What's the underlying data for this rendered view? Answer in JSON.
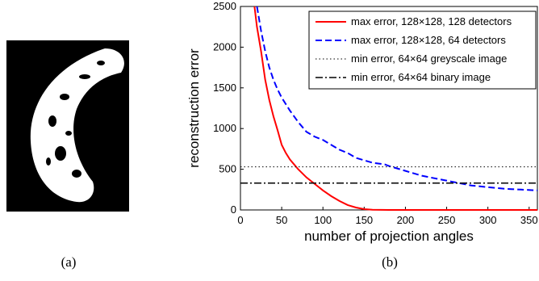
{
  "captions": [
    "(a)",
    "(b)"
  ],
  "chart_data": {
    "type": "line",
    "xlabel": "number of projection angles",
    "ylabel": "reconstruction error",
    "xlim": [
      0,
      360
    ],
    "xticks": [
      0,
      50,
      100,
      150,
      200,
      250,
      300,
      350
    ],
    "ylim": [
      0,
      2500
    ],
    "yticks": [
      0,
      500,
      1000,
      1500,
      2000,
      2500
    ],
    "legend": "upper right",
    "series": [
      {
        "name": "max error, 128×128, 128 detectors",
        "color": "#ff0000",
        "dash": "solid",
        "x": [
          17,
          20,
          25,
          30,
          35,
          40,
          45,
          50,
          55,
          60,
          65,
          70,
          80,
          90,
          100,
          110,
          120,
          130,
          140,
          150,
          160,
          180,
          250,
          360
        ],
        "values": [
          2500,
          2250,
          1950,
          1600,
          1350,
          1150,
          980,
          800,
          700,
          620,
          560,
          500,
          400,
          320,
          240,
          170,
          110,
          60,
          30,
          10,
          3,
          0,
          0,
          0
        ]
      },
      {
        "name": "max error, 128×128, 64 detectors",
        "color": "#0000ff",
        "dash": "dashed",
        "x": [
          20,
          25,
          30,
          35,
          40,
          45,
          50,
          60,
          70,
          80,
          90,
          100,
          110,
          120,
          130,
          140,
          150,
          160,
          175,
          180,
          200,
          220,
          240,
          260,
          280,
          300,
          320,
          340,
          360
        ],
        "values": [
          2500,
          2200,
          1950,
          1750,
          1600,
          1480,
          1380,
          1220,
          1080,
          960,
          900,
          860,
          800,
          740,
          700,
          640,
          610,
          580,
          560,
          540,
          480,
          420,
          380,
          340,
          300,
          280,
          260,
          250,
          240
        ]
      },
      {
        "name": "min error, 64×64 greyscale image",
        "color": "#000000",
        "dash": "dotted",
        "x": [
          0,
          360
        ],
        "values": [
          530,
          530
        ]
      },
      {
        "name": "min error, 64×64 binary image",
        "color": "#000000",
        "dash": "dashdot",
        "x": [
          0,
          360
        ],
        "values": [
          330,
          330
        ]
      }
    ]
  }
}
